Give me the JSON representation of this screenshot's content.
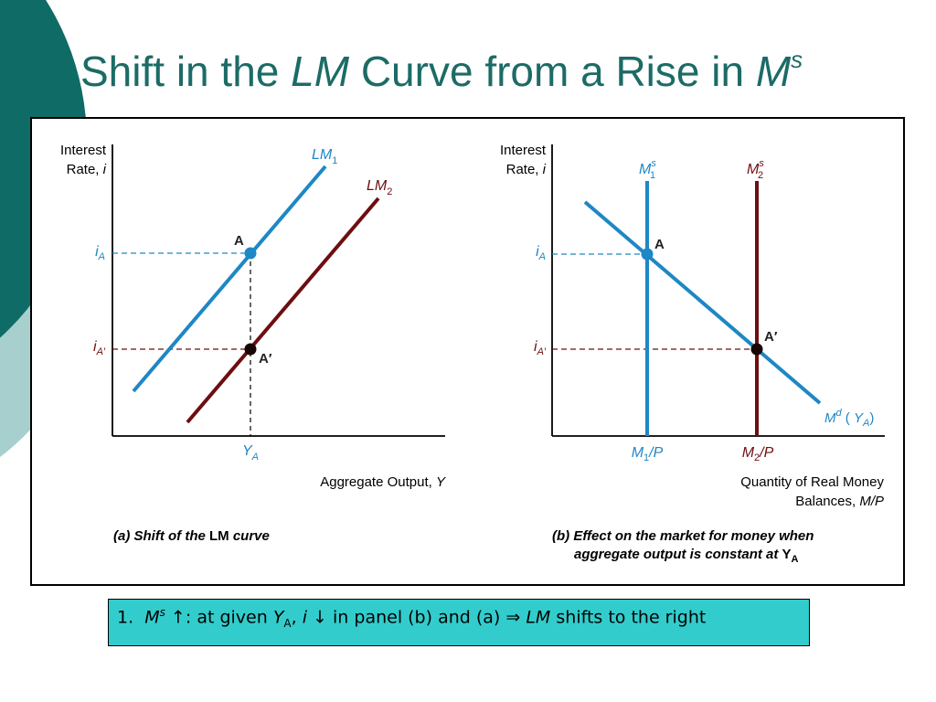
{
  "slide": {
    "title": {
      "part1": "Shift in the",
      "lm": "LM",
      "part2": "Curve from a Rise in",
      "m": "M",
      "s": "s"
    },
    "colors": {
      "title": "#1c6b66",
      "deco_dark": "#0f6b66",
      "deco_light": "#a6cfcd",
      "blue": "#1e87c5",
      "red": "#6d0e10",
      "callout_bg": "#33cccc"
    }
  },
  "panel_a": {
    "y_axis_label_line1": "Interest",
    "y_axis_label_line2": "Rate,",
    "y_axis_label_var": "i",
    "x_axis_label": "Aggregate Output,",
    "x_axis_label_var": "Y",
    "tick_iA_base": "i",
    "tick_iA_sub": "A",
    "tick_iA2_base": "i",
    "tick_iA2_sub": "A′",
    "tick_YA_base": "Y",
    "tick_YA_sub": "A",
    "curve1_base": "LM",
    "curve1_sub": "1",
    "curve2_base": "LM",
    "curve2_sub": "2",
    "point_A": "A",
    "point_A2": "A′",
    "caption_1": "(a) Shift of the",
    "caption_2": "LM",
    "caption_3": "curve"
  },
  "panel_b": {
    "y_axis_label_line1": "Interest",
    "y_axis_label_line2": "Rate,",
    "y_axis_label_var": "i",
    "x_axis_label_line1": "Quantity of Real Money",
    "x_axis_label_line2": "Balances,",
    "x_axis_label_var": "M/P",
    "tick_iA_base": "i",
    "tick_iA_sub": "A",
    "tick_iA2_base": "i",
    "tick_iA2_sub": "A′",
    "supply1_base": "M",
    "supply1_sup": "s",
    "supply1_sub": "1",
    "supply2_base": "M",
    "supply2_sup": "s",
    "supply2_sub": "2",
    "tick_M1_base": "M",
    "tick_M1_sub": "1",
    "tick_M1_tail": "/P",
    "tick_M2_base": "M",
    "tick_M2_sub": "2",
    "tick_M2_tail": "/P",
    "demand_base": "M",
    "demand_sup": "d",
    "demand_paren_open": "(",
    "demand_Y": "Y",
    "demand_Y_sub": "A",
    "demand_paren_close": ")",
    "point_A": "A",
    "point_A2": "A′",
    "caption_line1": "(b) Effect on the market for money when",
    "caption_line2": "aggregate output is constant at",
    "caption_line2_Y": "Y",
    "caption_line2_sub": "A"
  },
  "callout": {
    "number": "1.",
    "m": "M",
    "s": "s",
    "up_arrow": "↑",
    "text1": ": at given",
    "Y": "Y",
    "Y_sub": "A",
    "comma": ",",
    "i": "i",
    "down_arrow": "↓",
    "text2": "in panel (b) and (a)",
    "implies": "⇒",
    "lm": "LM",
    "text3": "shifts to the right"
  }
}
